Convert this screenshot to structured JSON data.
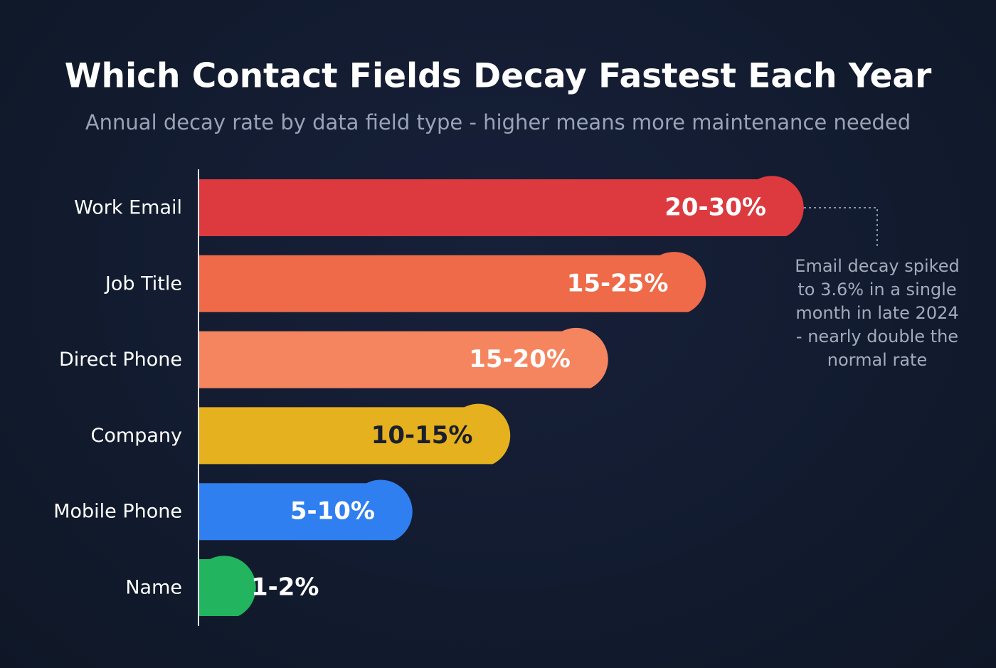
{
  "chart_data": {
    "type": "bar",
    "title": "Which Contact Fields Decay Fastest Each Year",
    "subtitle": "Annual decay rate by data field type - higher means more maintenance needed",
    "categories": [
      "Work Email",
      "Job Title",
      "Direct Phone",
      "Company",
      "Mobile Phone",
      "Name"
    ],
    "values": [
      [
        20,
        30
      ],
      [
        15,
        25
      ],
      [
        15,
        20
      ],
      [
        10,
        15
      ],
      [
        5,
        10
      ],
      [
        1,
        2
      ]
    ],
    "value_labels": [
      "20-30%",
      "15-25%",
      "15-20%",
      "10-15%",
      "5-10%",
      "1-2%"
    ],
    "colors": [
      "#dc3a3e",
      "#ee6a48",
      "#f5855f",
      "#e6b11e",
      "#2f7ff0",
      "#22b45f"
    ],
    "annotation": "Email decay spiked to 3.6% in a single month in late 2024 - nearly double the normal rate"
  }
}
